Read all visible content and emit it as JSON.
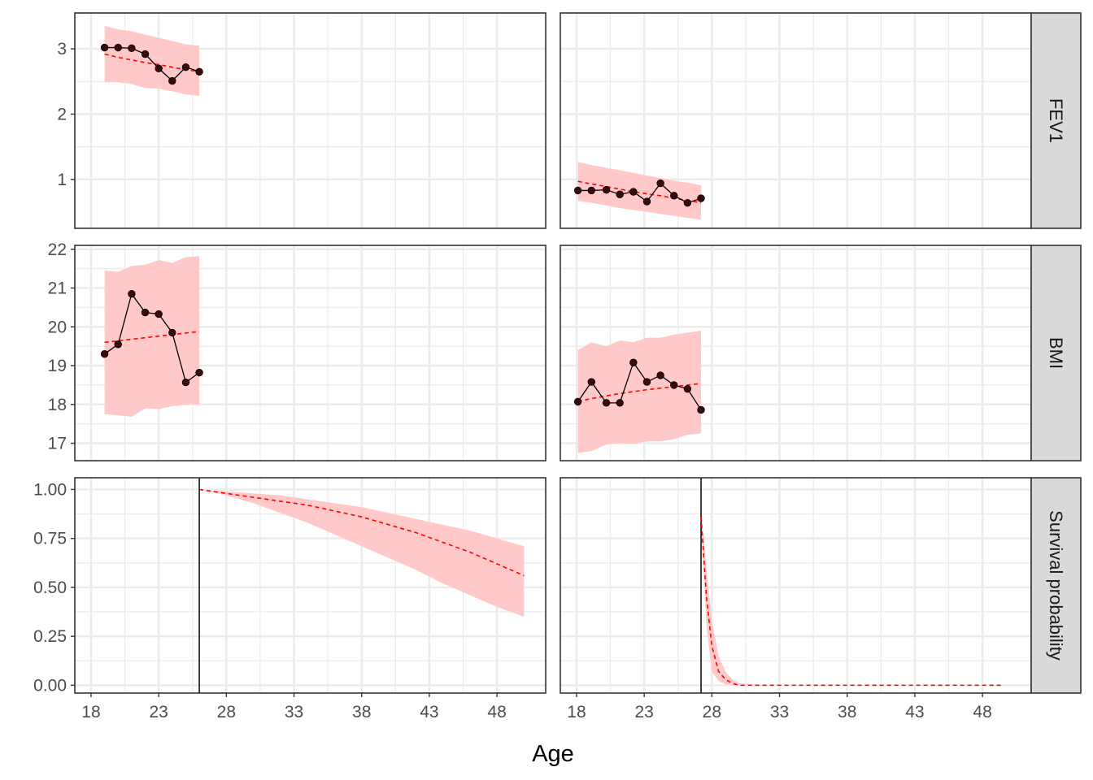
{
  "chart_data": {
    "type": "line",
    "layout": "faceted grid: 3 rows (strips on right) x 2 columns, shared x axis",
    "xlabel": "Age",
    "xlim": [
      16.8,
      51.6
    ],
    "x_ticks": [
      18,
      23,
      28,
      33,
      38,
      43,
      48
    ],
    "grid": true,
    "legend": "none",
    "colors": {
      "observed": "#000000",
      "points": "#3b0a0a",
      "prediction": "#ff0000",
      "band": "#ffc9c9",
      "strip_bg": "#d9d9d9",
      "grid": "#ebebeb",
      "border": "#333333"
    },
    "rows": [
      {
        "label": "FEV1",
        "ylim": [
          0.25,
          3.55
        ],
        "y_ticks": [
          1,
          2,
          3
        ],
        "y_tick_labels": [
          "1",
          "2",
          "3"
        ],
        "panels": [
          {
            "observed": {
              "x": [
                19,
                20,
                21,
                22,
                23,
                24,
                25,
                26
              ],
              "y": [
                3.02,
                3.02,
                3.01,
                2.92,
                2.7,
                2.51,
                2.72,
                2.65
              ]
            },
            "fitted": {
              "x": [
                19,
                20,
                21,
                22,
                23,
                24,
                25,
                26
              ],
              "y": [
                2.92,
                2.87,
                2.83,
                2.79,
                2.76,
                2.72,
                2.68,
                2.65
              ]
            },
            "band": {
              "x": [
                19,
                20,
                21,
                22,
                23,
                24,
                25,
                26
              ],
              "lower": [
                2.49,
                2.49,
                2.46,
                2.4,
                2.39,
                2.35,
                2.3,
                2.28
              ],
              "upper": [
                3.35,
                3.3,
                3.27,
                3.22,
                3.17,
                3.12,
                3.07,
                3.05
              ]
            }
          },
          {
            "observed": {
              "x": [
                18.1,
                19.1,
                20.2,
                21.2,
                22.2,
                23.2,
                24.2,
                25.2,
                26.2,
                27.2
              ],
              "y": [
                0.83,
                0.83,
                0.84,
                0.77,
                0.81,
                0.66,
                0.94,
                0.75,
                0.64,
                0.71
              ]
            },
            "fitted": {
              "x": [
                18.1,
                19.1,
                20.2,
                21.2,
                22.2,
                23.2,
                24.2,
                25.2,
                26.2,
                27.2
              ],
              "y": [
                0.97,
                0.93,
                0.89,
                0.85,
                0.81,
                0.78,
                0.75,
                0.71,
                0.68,
                0.64
              ]
            },
            "band": {
              "x": [
                18.1,
                19.1,
                20.2,
                21.2,
                22.2,
                23.2,
                24.2,
                25.2,
                26.2,
                27.2
              ],
              "lower": [
                0.67,
                0.64,
                0.6,
                0.56,
                0.53,
                0.5,
                0.47,
                0.44,
                0.41,
                0.38
              ],
              "upper": [
                1.27,
                1.22,
                1.18,
                1.14,
                1.1,
                1.06,
                1.02,
                0.98,
                0.95,
                0.91
              ]
            }
          }
        ]
      },
      {
        "label": "BMI",
        "ylim": [
          16.55,
          22.1
        ],
        "y_ticks": [
          17,
          18,
          19,
          20,
          21,
          22
        ],
        "y_tick_labels": [
          "17",
          "18",
          "19",
          "20",
          "21",
          "22"
        ],
        "panels": [
          {
            "observed": {
              "x": [
                19,
                20,
                21,
                22,
                23,
                24,
                25,
                26
              ],
              "y": [
                19.3,
                19.55,
                20.85,
                20.37,
                20.33,
                19.85,
                18.57,
                18.82
              ]
            },
            "fitted": {
              "x": [
                19,
                20,
                21,
                22,
                23,
                24,
                25,
                26
              ],
              "y": [
                19.6,
                19.64,
                19.68,
                19.72,
                19.76,
                19.8,
                19.84,
                19.88
              ]
            },
            "band": {
              "x": [
                19,
                20,
                21,
                22,
                23,
                24,
                25,
                26
              ],
              "lower": [
                17.75,
                17.72,
                17.68,
                17.9,
                17.88,
                17.95,
                18.0,
                18.0
              ],
              "upper": [
                21.45,
                21.42,
                21.57,
                21.6,
                21.72,
                21.65,
                21.8,
                21.82
              ]
            }
          },
          {
            "observed": {
              "x": [
                18.1,
                19.1,
                20.2,
                21.2,
                22.2,
                23.2,
                24.2,
                25.2,
                26.2,
                27.2
              ],
              "y": [
                18.07,
                18.58,
                18.04,
                18.04,
                19.08,
                18.58,
                18.75,
                18.5,
                18.4,
                17.86
              ]
            },
            "fitted": {
              "x": [
                18.1,
                19.1,
                20.2,
                21.2,
                22.2,
                23.2,
                24.2,
                25.2,
                26.2,
                27.2
              ],
              "y": [
                18.08,
                18.15,
                18.22,
                18.28,
                18.33,
                18.38,
                18.42,
                18.46,
                18.5,
                18.54
              ]
            },
            "band": {
              "x": [
                18.1,
                19.1,
                20.2,
                21.2,
                22.2,
                23.2,
                24.2,
                25.2,
                26.2,
                27.2
              ],
              "lower": [
                16.75,
                16.8,
                16.97,
                17.0,
                16.98,
                17.05,
                17.05,
                17.1,
                17.22,
                17.25
              ],
              "upper": [
                19.4,
                19.6,
                19.5,
                19.65,
                19.6,
                19.72,
                19.72,
                19.8,
                19.85,
                19.9
              ]
            }
          }
        ]
      },
      {
        "label": "Survival probability",
        "ylim": [
          -0.04,
          1.06
        ],
        "y_ticks": [
          0,
          0.25,
          0.5,
          0.75,
          1
        ],
        "y_tick_labels": [
          "0.00",
          "0.25",
          "0.50",
          "0.75",
          "1.00"
        ],
        "panels": [
          {
            "vline": 26,
            "fitted": {
              "x": [
                26,
                28,
                30,
                32,
                34,
                36,
                38,
                40,
                42,
                44,
                46,
                48,
                50
              ],
              "y": [
                1.0,
                0.98,
                0.96,
                0.94,
                0.92,
                0.89,
                0.86,
                0.82,
                0.78,
                0.73,
                0.68,
                0.62,
                0.56
              ]
            },
            "band": {
              "x": [
                26,
                28,
                30,
                32,
                34,
                36,
                38,
                40,
                42,
                44,
                46,
                48,
                50
              ],
              "lower": [
                1.0,
                0.97,
                0.93,
                0.88,
                0.83,
                0.77,
                0.71,
                0.65,
                0.59,
                0.52,
                0.46,
                0.4,
                0.35
              ],
              "upper": [
                1.0,
                0.99,
                0.98,
                0.97,
                0.95,
                0.93,
                0.91,
                0.88,
                0.85,
                0.82,
                0.79,
                0.75,
                0.71
              ]
            }
          },
          {
            "vline": 27.2,
            "fitted": {
              "x": [
                27.2,
                27.6,
                28,
                28.5,
                29,
                29.5,
                30,
                32,
                36,
                40,
                44,
                48,
                49.6
              ],
              "y": [
                0.86,
                0.45,
                0.2,
                0.07,
                0.03,
                0.01,
                0.0,
                0.0,
                0.0,
                0.0,
                0.0,
                0.0,
                0.0
              ]
            },
            "band": {
              "x": [
                27.2,
                27.6,
                28,
                28.5,
                29,
                29.5,
                30,
                32,
                36,
                40,
                44,
                48,
                49.6
              ],
              "lower": [
                0.82,
                0.3,
                0.07,
                0.02,
                0.005,
                0.0,
                0.0,
                0.0,
                0.0,
                0.0,
                0.0,
                0.0,
                0.0
              ],
              "upper": [
                0.9,
                0.6,
                0.33,
                0.15,
                0.07,
                0.03,
                0.01,
                0.0,
                0.0,
                0.0,
                0.0,
                0.0,
                0.0
              ]
            }
          }
        ]
      }
    ]
  }
}
